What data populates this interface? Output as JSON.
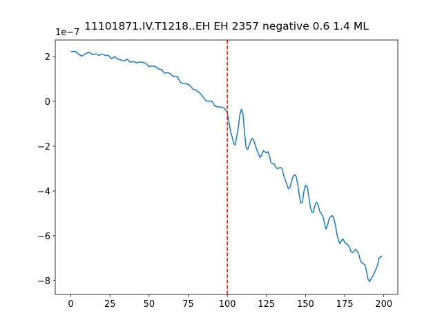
{
  "chart_data": {
    "type": "line",
    "title": "11101871.IV.T1218..EH EH 2357 negative 0.6 1.4 ML",
    "offset_label": "1e−7",
    "x": [
      0,
      3,
      5,
      7,
      10,
      12,
      14,
      16,
      18,
      20,
      22,
      24,
      26,
      28,
      30,
      32,
      34,
      36,
      38,
      40,
      42,
      44,
      46,
      48,
      50,
      52,
      54,
      56,
      58,
      60,
      62,
      64,
      66,
      68,
      70,
      72,
      74,
      76,
      78,
      80,
      82,
      84,
      86,
      88,
      90,
      92,
      94,
      96,
      98,
      100,
      102,
      104,
      105,
      107,
      108,
      109,
      110,
      111,
      112,
      113,
      115,
      116,
      117,
      119,
      121,
      122,
      123,
      124,
      125,
      126,
      127,
      128,
      130,
      131,
      132,
      134,
      135,
      136,
      138,
      139,
      140,
      141,
      142,
      143,
      144,
      145,
      146,
      147,
      148,
      149,
      150,
      151,
      152,
      153,
      154,
      155,
      156,
      157,
      158,
      159,
      160,
      161,
      162,
      163,
      164,
      165,
      166,
      167,
      168,
      169,
      170,
      171,
      172,
      173,
      174,
      175,
      176,
      177,
      178,
      179,
      180,
      181,
      182,
      183,
      184,
      185,
      186,
      187,
      188,
      189,
      190,
      191,
      192,
      193,
      194,
      195,
      196,
      197,
      198,
      199
    ],
    "series": [
      {
        "color": "#1f77b4",
        "values": [
          2.22,
          2.23,
          2.1,
          2.02,
          2.15,
          2.18,
          2.08,
          2.12,
          2.05,
          2.12,
          2.05,
          2.05,
          1.9,
          2.0,
          1.88,
          1.85,
          1.8,
          1.88,
          1.75,
          1.78,
          1.72,
          1.76,
          1.74,
          1.7,
          1.55,
          1.58,
          1.56,
          1.45,
          1.42,
          1.25,
          1.3,
          1.2,
          1.1,
          1.12,
          0.85,
          0.8,
          0.78,
          0.72,
          0.55,
          0.5,
          0.4,
          0.25,
          0.05,
          0.0,
          0.02,
          -0.2,
          -0.25,
          -0.25,
          -0.3,
          -0.5,
          -1.3,
          -1.85,
          -1.95,
          -1.2,
          -0.6,
          -0.35,
          -0.55,
          -1.4,
          -2.05,
          -2.15,
          -1.75,
          -1.65,
          -1.75,
          -2.2,
          -2.5,
          -2.4,
          -2.2,
          -2.25,
          -2.3,
          -2.25,
          -2.45,
          -2.75,
          -2.8,
          -2.95,
          -3.0,
          -2.95,
          -3.0,
          -3.3,
          -3.7,
          -3.9,
          -3.85,
          -3.6,
          -3.35,
          -3.28,
          -3.35,
          -3.7,
          -4.2,
          -4.55,
          -4.5,
          -4.0,
          -3.75,
          -3.8,
          -4.2,
          -4.7,
          -4.95,
          -4.95,
          -4.65,
          -4.5,
          -4.6,
          -4.9,
          -5.0,
          -5.1,
          -5.4,
          -5.7,
          -5.55,
          -5.25,
          -5.15,
          -5.1,
          -5.2,
          -5.5,
          -5.9,
          -6.2,
          -6.35,
          -6.2,
          -6.15,
          -6.3,
          -6.35,
          -6.4,
          -6.5,
          -6.7,
          -6.75,
          -6.7,
          -6.6,
          -6.7,
          -6.8,
          -7.1,
          -7.2,
          -7.25,
          -7.3,
          -7.6,
          -7.95,
          -8.05,
          -7.9,
          -7.8,
          -7.65,
          -7.5,
          -7.3,
          -7.0,
          -6.95,
          -6.9
        ]
      }
    ],
    "vline": {
      "x": 100,
      "color": "#ff0000"
    },
    "xlim": [
      -9.95,
      208.95
    ],
    "ylim": [
      -8.62,
      2.74
    ],
    "xticks": [
      0,
      25,
      50,
      75,
      100,
      125,
      150,
      175,
      200
    ],
    "yticks": [
      {
        "value": -8,
        "label": "−8"
      },
      {
        "value": -6,
        "label": "−6"
      },
      {
        "value": -4,
        "label": "−4"
      },
      {
        "value": -2,
        "label": "−2"
      },
      0,
      2
    ]
  }
}
